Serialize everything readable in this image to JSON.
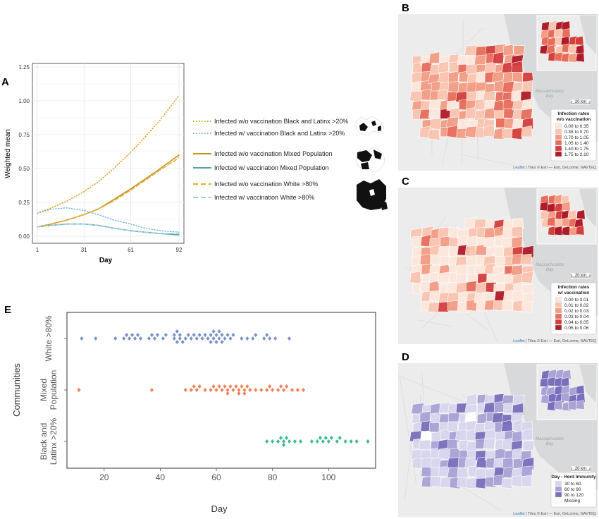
{
  "panels": {
    "a": "A",
    "b": "B",
    "c": "C",
    "d": "D",
    "e": "E"
  },
  "chart_data": [
    {
      "type": "line",
      "panel": "A",
      "ylabel": "Weighted mean",
      "xlabel": "Day",
      "xlim": [
        1,
        92
      ],
      "ylim": [
        0,
        1.25
      ],
      "x_ticks": [
        "1",
        "31",
        "61",
        "92"
      ],
      "y_ticks": [
        "0.00",
        "0.25",
        "0.50",
        "0.75",
        "1.00",
        "1.25"
      ],
      "grid": true,
      "legend_position": "right",
      "x": [
        1,
        10,
        20,
        31,
        40,
        50,
        61,
        70,
        80,
        92
      ],
      "series": [
        {
          "name": "Infected w/o vaccination Black and Latinx >20%",
          "color": "#d4a017",
          "dash": "dotted",
          "values": [
            0.17,
            0.21,
            0.26,
            0.33,
            0.4,
            0.5,
            0.62,
            0.73,
            0.86,
            1.04
          ]
        },
        {
          "name": "Infected w/ vaccination Black and Latinx >20%",
          "color": "#6fb5c9",
          "dash": "dotted",
          "values": [
            0.17,
            0.2,
            0.21,
            0.19,
            0.16,
            0.12,
            0.09,
            0.06,
            0.04,
            0.03
          ]
        },
        {
          "name": "Infected w/o vaccination Mixed Population",
          "color": "#c8901a",
          "dash": "solid",
          "values": [
            0.07,
            0.09,
            0.12,
            0.16,
            0.2,
            0.27,
            0.35,
            0.42,
            0.5,
            0.6
          ]
        },
        {
          "name": "Infected w/ vaccination Mixed Population",
          "color": "#5a9eb0",
          "dash": "solid",
          "values": [
            0.07,
            0.08,
            0.09,
            0.09,
            0.08,
            0.06,
            0.04,
            0.03,
            0.02,
            0.01
          ]
        },
        {
          "name": "Infected w/o vaccination White >80%",
          "color": "#e0b030",
          "dash": "dashed",
          "values": [
            0.07,
            0.09,
            0.12,
            0.16,
            0.2,
            0.26,
            0.34,
            0.41,
            0.49,
            0.58
          ]
        },
        {
          "name": "Infected w/ vaccination White >80%",
          "color": "#9ecfdc",
          "dash": "dashed",
          "values": [
            0.07,
            0.08,
            0.09,
            0.09,
            0.08,
            0.06,
            0.04,
            0.03,
            0.02,
            0.02
          ]
        }
      ]
    },
    {
      "type": "scatter",
      "panel": "E",
      "xlabel": "Day",
      "ylabel": "Communities",
      "xlim": [
        8,
        116
      ],
      "x_ticks": [
        20,
        40,
        60,
        80,
        100
      ],
      "categories": [
        "White >80%",
        "Mixed Population",
        "Black and Latinx >20%"
      ],
      "category_lines": [
        [
          "White >80%"
        ],
        [
          "Mixed",
          "Population"
        ],
        [
          "Black and",
          "Latinx >20%"
        ]
      ],
      "series": [
        {
          "name": "White >80%",
          "color": "#7b93c9",
          "values": [
            12,
            17,
            24,
            27,
            28,
            29,
            30,
            31,
            32,
            33,
            36,
            37,
            38,
            39,
            41,
            42,
            45,
            45,
            46,
            46,
            47,
            47,
            48,
            49,
            50,
            51,
            52,
            53,
            54,
            55,
            56,
            57,
            58,
            58,
            59,
            59,
            60,
            60,
            61,
            61,
            62,
            62,
            63,
            64,
            65,
            66,
            69,
            71,
            73,
            74,
            77,
            78,
            79,
            81,
            86
          ]
        },
        {
          "name": "Mixed Population",
          "color": "#f0825a",
          "values": [
            11,
            37,
            49,
            51,
            52,
            53,
            54,
            56,
            58,
            59,
            60,
            61,
            62,
            63,
            64,
            64,
            65,
            66,
            67,
            68,
            68,
            69,
            70,
            70,
            71,
            72,
            74,
            76,
            78,
            79,
            80,
            82,
            83,
            84,
            85,
            87,
            89,
            91
          ]
        },
        {
          "name": "Black and Latinx >20%",
          "color": "#3fba91",
          "values": [
            78,
            80,
            82,
            83,
            84,
            84,
            85,
            86,
            88,
            90,
            94,
            96,
            97,
            98,
            99,
            100,
            101,
            103,
            104,
            106,
            108,
            110,
            114
          ]
        }
      ]
    }
  ],
  "maps": {
    "b": {
      "legend_title": [
        "Infection rates",
        "w/o vaccination"
      ],
      "legend_items": [
        {
          "label": "0.00 to 0.35",
          "color": "#fde7dc"
        },
        {
          "label": "0.35 to 0.70",
          "color": "#f9c4b0"
        },
        {
          "label": "0.70 to 1.05",
          "color": "#f39c85"
        },
        {
          "label": "1.05 to 1.40",
          "color": "#e76d5b"
        },
        {
          "label": "1.40 to 1.75",
          "color": "#d33f3c"
        },
        {
          "label": "1.75 to 2.10",
          "color": "#b01b2a"
        }
      ]
    },
    "c": {
      "legend_title": [
        "Infection rates",
        "w/ vaccination"
      ],
      "legend_items": [
        {
          "label": "0.00 to 0.01",
          "color": "#fde7dc"
        },
        {
          "label": "0.01 to 0.02",
          "color": "#f9c4b0"
        },
        {
          "label": "0.02 to 0.03",
          "color": "#f39c85"
        },
        {
          "label": "0.03 to 0.04",
          "color": "#e76d5b"
        },
        {
          "label": "0.04 to 0.05",
          "color": "#d33f3c"
        },
        {
          "label": "0.05 to 0.06",
          "color": "#b01b2a"
        }
      ]
    },
    "d": {
      "legend_title": [
        "Day - Herd Immunity"
      ],
      "legend_items": [
        {
          "label": "30 to 60",
          "color": "#d8d6ee"
        },
        {
          "label": "60 to 90",
          "color": "#a9a3d6"
        },
        {
          "label": "90 to 120",
          "color": "#7a6fbc"
        },
        {
          "label": "Missing",
          "color": "#ffffff"
        }
      ]
    },
    "scale": "20 km",
    "attribution_link": "Leaflet",
    "attribution": " | Tiles © Esri — Esri, DeLorme, NAVTEQ",
    "water_label": [
      "Massachusetts",
      "Bay"
    ]
  }
}
